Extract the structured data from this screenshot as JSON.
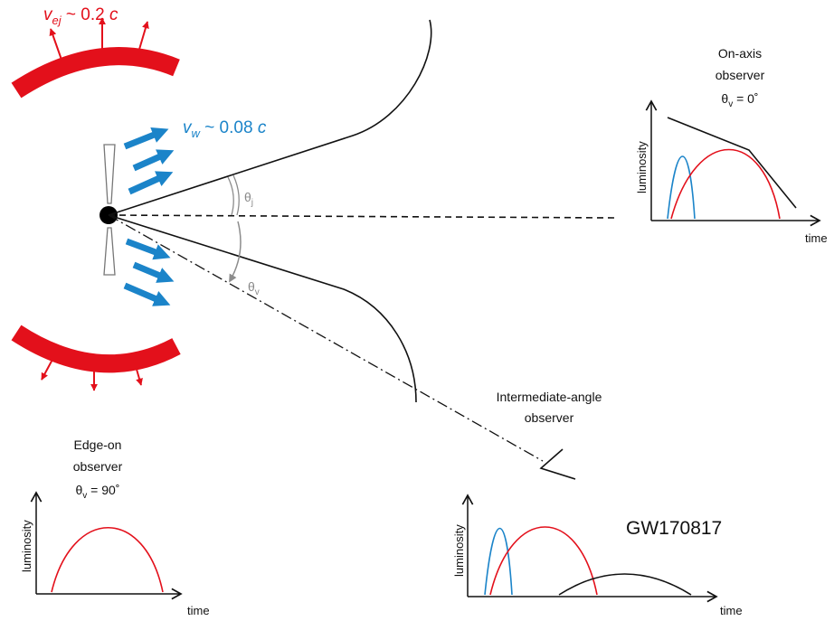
{
  "labels": {
    "ejecta_velocity": {
      "sym": "v",
      "sub": "ej",
      "rest": " ~ 0.2 ",
      "c": "c"
    },
    "wind_velocity": {
      "sym": "v",
      "sub": "w",
      "rest": " ~ 0.08 ",
      "c": "c"
    },
    "jet_angle": {
      "sym": "θ",
      "sub": "j"
    },
    "view_angle": {
      "sym": "θ",
      "sub": "v"
    }
  },
  "observers": {
    "on_axis": {
      "line1": "On-axis",
      "line2": "observer",
      "theta": "θ",
      "theta_sub": "v",
      "theta_value": " = 0˚"
    },
    "intermediate": {
      "line1": "Intermediate-angle",
      "line2": "observer"
    },
    "edge_on": {
      "line1": "Edge-on",
      "line2": "observer",
      "theta": "θ",
      "theta_sub": "v",
      "theta_value": " = 90˚"
    }
  },
  "plots": {
    "ylabel": "luminosity",
    "xlabel": "time",
    "event_name": "GW170817"
  },
  "colors": {
    "ejecta": "#e3101b",
    "wind": "#1b84c9",
    "jet": "#111111",
    "angle": "#8c8c8c"
  }
}
